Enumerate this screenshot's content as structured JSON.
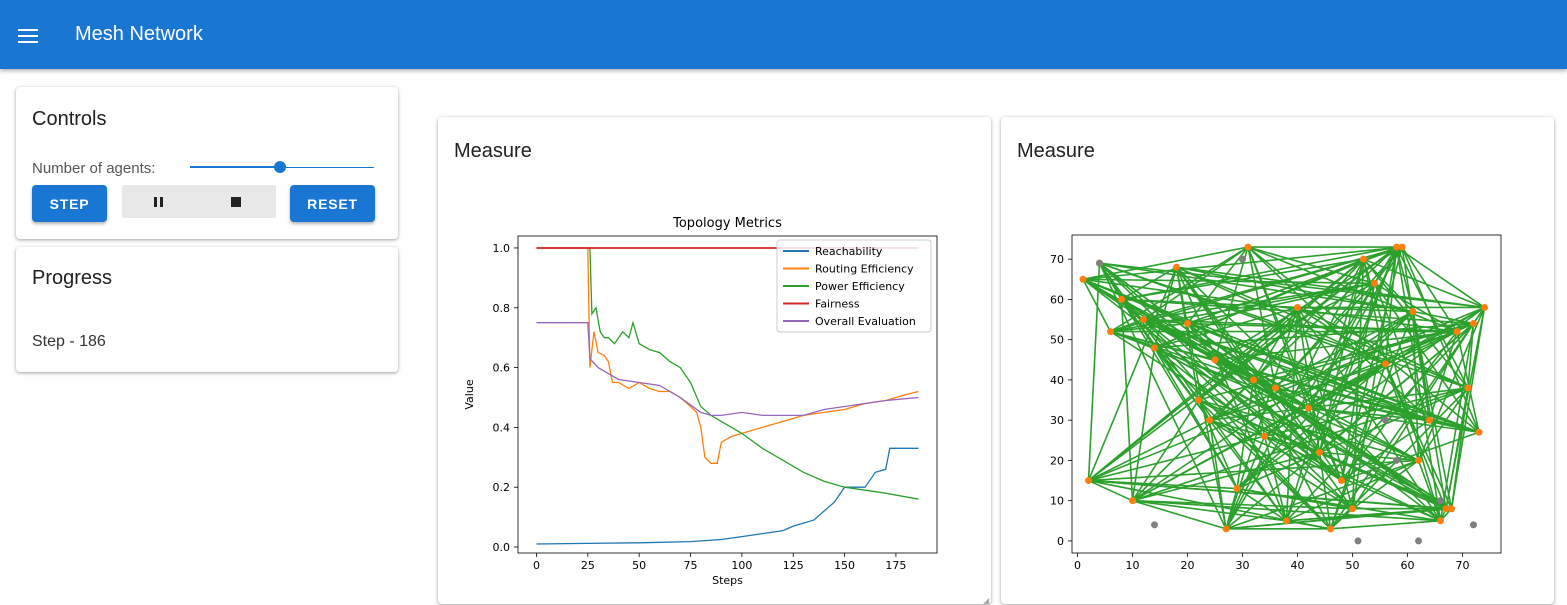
{
  "appbar": {
    "title": "Mesh Network",
    "menu_icon": "hamburger-menu-icon",
    "color": "#1976d2"
  },
  "controls": {
    "title": "Controls",
    "agents_label": "Number of agents:",
    "agents_slider_fraction": 0.49,
    "step_label": "STEP",
    "reset_label": "RESET",
    "pause_icon": "pause-icon",
    "stop_icon": "stop-icon"
  },
  "progress": {
    "title": "Progress",
    "step_text": "Step - 186"
  },
  "measure_left": {
    "title": "Measure"
  },
  "measure_right": {
    "title": "Measure"
  },
  "chart_data": [
    {
      "type": "line",
      "title": "Topology Metrics",
      "xlabel": "Steps",
      "ylabel": "Value",
      "xlim": [
        -9,
        195
      ],
      "ylim": [
        -0.02,
        1.04
      ],
      "xticks": [
        0,
        25,
        50,
        75,
        100,
        125,
        150,
        175
      ],
      "yticks": [
        0.0,
        0.2,
        0.4,
        0.6,
        0.8,
        1.0
      ],
      "ytick_labels": [
        "0.0",
        "0.2",
        "0.4",
        "0.6",
        "0.8",
        "1.0"
      ],
      "legend_position": "top-right",
      "grid": false,
      "series": [
        {
          "name": "Reachability",
          "color": "#1f77b4",
          "points": [
            [
              0,
              0.01
            ],
            [
              25,
              0.012
            ],
            [
              50,
              0.014
            ],
            [
              75,
              0.018
            ],
            [
              90,
              0.025
            ],
            [
              100,
              0.035
            ],
            [
              110,
              0.045
            ],
            [
              120,
              0.055
            ],
            [
              125,
              0.07
            ],
            [
              130,
              0.08
            ],
            [
              135,
              0.09
            ],
            [
              140,
              0.12
            ],
            [
              145,
              0.15
            ],
            [
              150,
              0.2
            ],
            [
              160,
              0.2
            ],
            [
              165,
              0.25
            ],
            [
              170,
              0.26
            ],
            [
              172,
              0.33
            ],
            [
              186,
              0.33
            ]
          ]
        },
        {
          "name": "Routing Efficiency",
          "color": "#ff7f0e",
          "points": [
            [
              0,
              1.0
            ],
            [
              25,
              1.0
            ],
            [
              26,
              0.6
            ],
            [
              28,
              0.72
            ],
            [
              30,
              0.65
            ],
            [
              33,
              0.64
            ],
            [
              35,
              0.62
            ],
            [
              37,
              0.55
            ],
            [
              40,
              0.55
            ],
            [
              45,
              0.53
            ],
            [
              50,
              0.55
            ],
            [
              55,
              0.53
            ],
            [
              60,
              0.52
            ],
            [
              65,
              0.52
            ],
            [
              70,
              0.5
            ],
            [
              75,
              0.47
            ],
            [
              78,
              0.45
            ],
            [
              80,
              0.4
            ],
            [
              82,
              0.3
            ],
            [
              85,
              0.28
            ],
            [
              88,
              0.28
            ],
            [
              90,
              0.35
            ],
            [
              95,
              0.37
            ],
            [
              100,
              0.38
            ],
            [
              110,
              0.4
            ],
            [
              120,
              0.42
            ],
            [
              130,
              0.44
            ],
            [
              140,
              0.45
            ],
            [
              150,
              0.46
            ],
            [
              160,
              0.48
            ],
            [
              170,
              0.49
            ],
            [
              180,
              0.51
            ],
            [
              186,
              0.52
            ]
          ]
        },
        {
          "name": "Power Efficiency",
          "color": "#2ca02c",
          "points": [
            [
              0,
              1.0
            ],
            [
              26,
              1.0
            ],
            [
              27,
              0.78
            ],
            [
              29,
              0.8
            ],
            [
              31,
              0.72
            ],
            [
              33,
              0.7
            ],
            [
              35,
              0.7
            ],
            [
              38,
              0.68
            ],
            [
              40,
              0.7
            ],
            [
              42,
              0.72
            ],
            [
              45,
              0.7
            ],
            [
              47,
              0.75
            ],
            [
              50,
              0.68
            ],
            [
              55,
              0.66
            ],
            [
              60,
              0.65
            ],
            [
              65,
              0.62
            ],
            [
              70,
              0.6
            ],
            [
              75,
              0.55
            ],
            [
              80,
              0.47
            ],
            [
              85,
              0.44
            ],
            [
              90,
              0.42
            ],
            [
              95,
              0.4
            ],
            [
              100,
              0.38
            ],
            [
              110,
              0.33
            ],
            [
              120,
              0.29
            ],
            [
              130,
              0.25
            ],
            [
              140,
              0.22
            ],
            [
              150,
              0.2
            ],
            [
              160,
              0.19
            ],
            [
              170,
              0.18
            ],
            [
              186,
              0.16
            ]
          ]
        },
        {
          "name": "Fairness",
          "color": "#d62728",
          "points": [
            [
              0,
              1.0
            ],
            [
              186,
              1.0
            ]
          ]
        },
        {
          "name": "Overall Evaluation",
          "color": "#9467bd",
          "points": [
            [
              0,
              0.75
            ],
            [
              25,
              0.75
            ],
            [
              26,
              0.63
            ],
            [
              30,
              0.6
            ],
            [
              35,
              0.58
            ],
            [
              40,
              0.56
            ],
            [
              50,
              0.55
            ],
            [
              60,
              0.54
            ],
            [
              70,
              0.5
            ],
            [
              80,
              0.45
            ],
            [
              85,
              0.44
            ],
            [
              90,
              0.44
            ],
            [
              100,
              0.45
            ],
            [
              110,
              0.44
            ],
            [
              120,
              0.44
            ],
            [
              130,
              0.44
            ],
            [
              140,
              0.46
            ],
            [
              150,
              0.47
            ],
            [
              160,
              0.48
            ],
            [
              170,
              0.49
            ],
            [
              186,
              0.5
            ]
          ]
        }
      ]
    },
    {
      "type": "scatter",
      "title": "",
      "xlim": [
        -1,
        77
      ],
      "ylim": [
        -3,
        76
      ],
      "xticks": [
        0,
        10,
        20,
        30,
        40,
        50,
        60,
        70
      ],
      "yticks": [
        0,
        10,
        20,
        30,
        40,
        50,
        60,
        70
      ],
      "edge_color": "#2ca02c",
      "series": [
        {
          "name": "",
          "color": "#ff7f0e",
          "points": [
            [
              1,
              65
            ],
            [
              2,
              15
            ],
            [
              4,
              69
            ],
            [
              6,
              52
            ],
            [
              8,
              60
            ],
            [
              10,
              10
            ],
            [
              12,
              55
            ],
            [
              14,
              48
            ],
            [
              18,
              68
            ],
            [
              20,
              54
            ],
            [
              22,
              35
            ],
            [
              24,
              30
            ],
            [
              25,
              45
            ],
            [
              27,
              3
            ],
            [
              29,
              13
            ],
            [
              31,
              73
            ],
            [
              32,
              40
            ],
            [
              34,
              26
            ],
            [
              36,
              38
            ],
            [
              38,
              5
            ],
            [
              40,
              58
            ],
            [
              42,
              33
            ],
            [
              44,
              22
            ],
            [
              46,
              3
            ],
            [
              48,
              15
            ],
            [
              50,
              8
            ],
            [
              52,
              70
            ],
            [
              54,
              64
            ],
            [
              56,
              44
            ],
            [
              58,
              73
            ],
            [
              59,
              73
            ],
            [
              61,
              57
            ],
            [
              62,
              20
            ],
            [
              64,
              30
            ],
            [
              66,
              5
            ],
            [
              67,
              8
            ],
            [
              69,
              52
            ],
            [
              71,
              38
            ],
            [
              72,
              54
            ],
            [
              73,
              27
            ],
            [
              74,
              58
            ],
            [
              68,
              8
            ]
          ]
        },
        {
          "name": "",
          "color": "#7f7f7f",
          "points": [
            [
              4,
              69
            ],
            [
              14,
              4
            ],
            [
              30,
              70
            ],
            [
              51,
              0
            ],
            [
              56,
              30
            ],
            [
              58,
              20
            ],
            [
              62,
              0
            ],
            [
              66,
              10
            ],
            [
              72,
              4
            ]
          ]
        }
      ]
    }
  ]
}
